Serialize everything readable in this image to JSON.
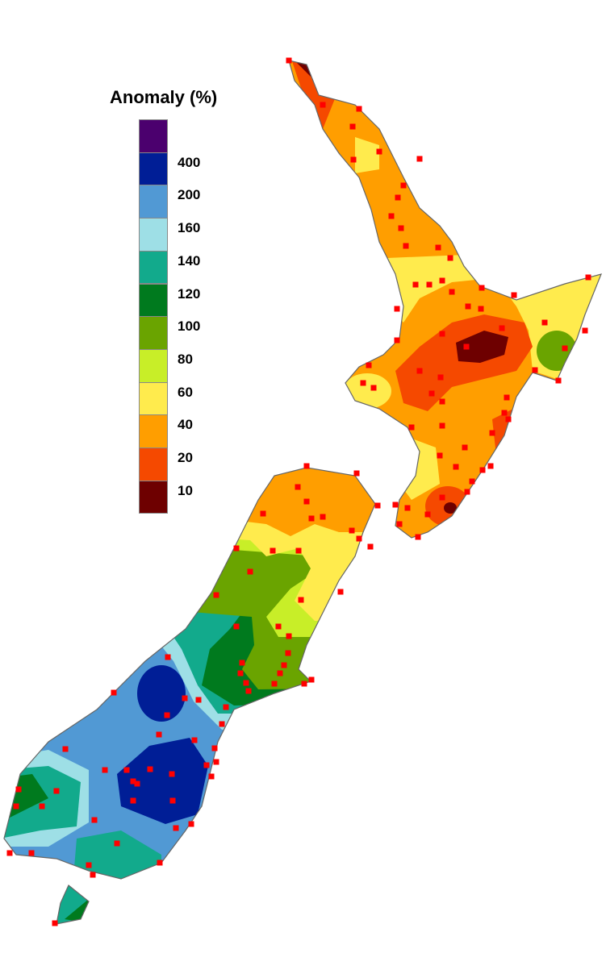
{
  "legend": {
    "title": "Anomaly (%)",
    "labels": [
      "400",
      "200",
      "160",
      "140",
      "120",
      "100",
      "80",
      "60",
      "40",
      "20",
      "10"
    ],
    "colors": [
      "#4B006E",
      "#001E96",
      "#5199D4",
      "#9EDFE6",
      "#12AA8C",
      "#007A1E",
      "#6AA400",
      "#C8EE28",
      "#FFEB4D",
      "#FF9E00",
      "#F54900",
      "#6E0000"
    ]
  },
  "map": {
    "region": "New Zealand",
    "station_marker_color": "#FF0000",
    "coastline_color": "#666666"
  }
}
